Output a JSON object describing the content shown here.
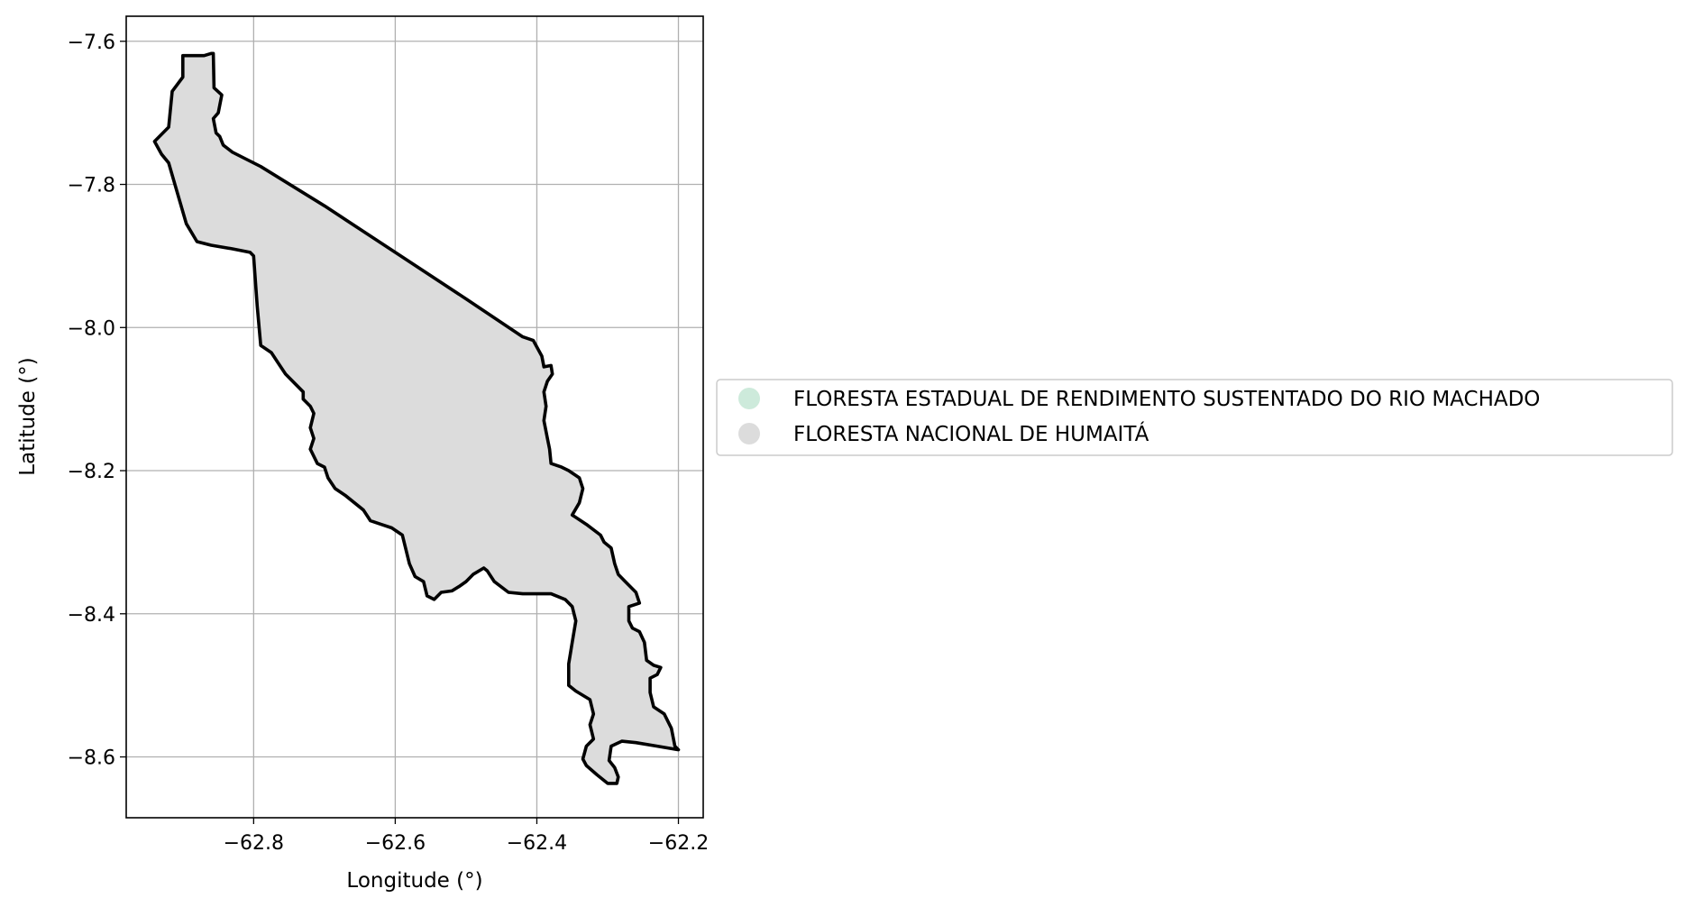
{
  "chart_data": {
    "type": "map",
    "xlabel": "Longitude (°)",
    "ylabel": "Latitude (°)",
    "xlim": [
      -62.98,
      -62.165
    ],
    "ylim": [
      -8.685,
      -7.565
    ],
    "xticks": [
      -62.8,
      -62.6,
      -62.4,
      -62.2
    ],
    "yticks": [
      -7.6,
      -7.8,
      -8.0,
      -8.2,
      -8.4,
      -8.6
    ],
    "xtick_labels": [
      "−62.8",
      "−62.6",
      "−62.4",
      "−62.2"
    ],
    "ytick_labels": [
      "−7.6",
      "−7.8",
      "−8.0",
      "−8.2",
      "−8.4",
      "−8.6"
    ],
    "grid": true,
    "legend_position": "right",
    "legend": [
      {
        "label": "FLORESTA ESTADUAL DE RENDIMENTO SUSTENTADO DO RIO MACHADO",
        "color": "#cdeadb"
      },
      {
        "label": "FLORESTA NACIONAL DE HUMAITÁ",
        "color": "#dcdcdc"
      }
    ],
    "regions": [
      {
        "name": "FLORESTA NACIONAL DE HUMAITÁ",
        "fill": "#dcdcdc",
        "stroke": "#000000",
        "coordinates": [
          [
            -62.9,
            -7.62
          ],
          [
            -62.87,
            -7.62
          ],
          [
            -62.86,
            -7.617
          ],
          [
            -62.857,
            -7.617
          ],
          [
            -62.856,
            -7.665
          ],
          [
            -62.845,
            -7.675
          ],
          [
            -62.85,
            -7.7
          ],
          [
            -62.857,
            -7.708
          ],
          [
            -62.853,
            -7.728
          ],
          [
            -62.848,
            -7.733
          ],
          [
            -62.843,
            -7.745
          ],
          [
            -62.83,
            -7.755
          ],
          [
            -62.79,
            -7.775
          ],
          [
            -62.7,
            -7.83
          ],
          [
            -62.6,
            -7.895
          ],
          [
            -62.5,
            -7.96
          ],
          [
            -62.42,
            -8.013
          ],
          [
            -62.405,
            -8.018
          ],
          [
            -62.393,
            -8.04
          ],
          [
            -62.39,
            -8.055
          ],
          [
            -62.38,
            -8.053
          ],
          [
            -62.378,
            -8.065
          ],
          [
            -62.385,
            -8.075
          ],
          [
            -62.39,
            -8.09
          ],
          [
            -62.387,
            -8.11
          ],
          [
            -62.39,
            -8.13
          ],
          [
            -62.385,
            -8.155
          ],
          [
            -62.382,
            -8.17
          ],
          [
            -62.38,
            -8.19
          ],
          [
            -62.365,
            -8.195
          ],
          [
            -62.355,
            -8.2
          ],
          [
            -62.34,
            -8.21
          ],
          [
            -62.335,
            -8.225
          ],
          [
            -62.34,
            -8.245
          ],
          [
            -62.35,
            -8.262
          ],
          [
            -62.33,
            -8.275
          ],
          [
            -62.31,
            -8.29
          ],
          [
            -62.305,
            -8.3
          ],
          [
            -62.295,
            -8.308
          ],
          [
            -62.29,
            -8.33
          ],
          [
            -62.285,
            -8.345
          ],
          [
            -62.275,
            -8.355
          ],
          [
            -62.26,
            -8.37
          ],
          [
            -62.255,
            -8.385
          ],
          [
            -62.27,
            -8.39
          ],
          [
            -62.27,
            -8.41
          ],
          [
            -62.265,
            -8.42
          ],
          [
            -62.255,
            -8.425
          ],
          [
            -62.248,
            -8.44
          ],
          [
            -62.245,
            -8.465
          ],
          [
            -62.235,
            -8.472
          ],
          [
            -62.225,
            -8.475
          ],
          [
            -62.23,
            -8.485
          ],
          [
            -62.24,
            -8.49
          ],
          [
            -62.24,
            -8.51
          ],
          [
            -62.235,
            -8.53
          ],
          [
            -62.22,
            -8.54
          ],
          [
            -62.21,
            -8.56
          ],
          [
            -62.205,
            -8.585
          ],
          [
            -62.2,
            -8.59
          ],
          [
            -62.23,
            -8.585
          ],
          [
            -62.26,
            -8.58
          ],
          [
            -62.28,
            -8.578
          ],
          [
            -62.295,
            -8.585
          ],
          [
            -62.298,
            -8.605
          ],
          [
            -62.29,
            -8.615
          ],
          [
            -62.285,
            -8.628
          ],
          [
            -62.287,
            -8.637
          ],
          [
            -62.3,
            -8.637
          ],
          [
            -62.315,
            -8.625
          ],
          [
            -62.33,
            -8.612
          ],
          [
            -62.335,
            -8.603
          ],
          [
            -62.33,
            -8.585
          ],
          [
            -62.32,
            -8.575
          ],
          [
            -62.325,
            -8.555
          ],
          [
            -62.32,
            -8.54
          ],
          [
            -62.325,
            -8.52
          ],
          [
            -62.345,
            -8.508
          ],
          [
            -62.355,
            -8.5
          ],
          [
            -62.355,
            -8.47
          ],
          [
            -62.35,
            -8.44
          ],
          [
            -62.345,
            -8.41
          ],
          [
            -62.35,
            -8.39
          ],
          [
            -62.36,
            -8.38
          ],
          [
            -62.38,
            -8.372
          ],
          [
            -62.42,
            -8.372
          ],
          [
            -62.44,
            -8.37
          ],
          [
            -62.46,
            -8.355
          ],
          [
            -62.47,
            -8.34
          ],
          [
            -62.475,
            -8.336
          ],
          [
            -62.49,
            -8.345
          ],
          [
            -62.5,
            -8.355
          ],
          [
            -62.51,
            -8.362
          ],
          [
            -62.52,
            -8.368
          ],
          [
            -62.535,
            -8.37
          ],
          [
            -62.545,
            -8.38
          ],
          [
            -62.555,
            -8.375
          ],
          [
            -62.56,
            -8.355
          ],
          [
            -62.572,
            -8.348
          ],
          [
            -62.58,
            -8.33
          ],
          [
            -62.585,
            -8.31
          ],
          [
            -62.59,
            -8.29
          ],
          [
            -62.605,
            -8.28
          ],
          [
            -62.62,
            -8.275
          ],
          [
            -62.635,
            -8.27
          ],
          [
            -62.645,
            -8.255
          ],
          [
            -62.67,
            -8.235
          ],
          [
            -62.685,
            -8.225
          ],
          [
            -62.695,
            -8.21
          ],
          [
            -62.7,
            -8.195
          ],
          [
            -62.71,
            -8.19
          ],
          [
            -62.72,
            -8.17
          ],
          [
            -62.715,
            -8.155
          ],
          [
            -62.72,
            -8.14
          ],
          [
            -62.715,
            -8.12
          ],
          [
            -62.72,
            -8.11
          ],
          [
            -62.73,
            -8.1
          ],
          [
            -62.73,
            -8.09
          ],
          [
            -62.74,
            -8.08
          ],
          [
            -62.755,
            -8.065
          ],
          [
            -62.765,
            -8.05
          ],
          [
            -62.775,
            -8.035
          ],
          [
            -62.79,
            -8.025
          ],
          [
            -62.795,
            -7.97
          ],
          [
            -62.8,
            -7.9
          ],
          [
            -62.805,
            -7.895
          ],
          [
            -62.83,
            -7.89
          ],
          [
            -62.86,
            -7.885
          ],
          [
            -62.88,
            -7.88
          ],
          [
            -62.895,
            -7.855
          ],
          [
            -62.92,
            -7.77
          ],
          [
            -62.93,
            -7.758
          ],
          [
            -62.94,
            -7.74
          ],
          [
            -62.92,
            -7.72
          ],
          [
            -62.915,
            -7.67
          ],
          [
            -62.9,
            -7.65
          ],
          [
            -62.9,
            -7.62
          ]
        ]
      }
    ]
  }
}
